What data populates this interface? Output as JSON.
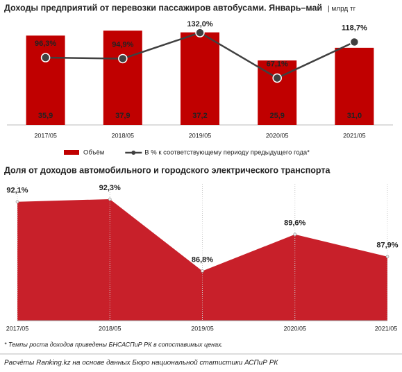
{
  "chart_data": [
    {
      "type": "combo",
      "title": "Доходы предприятий от перевозки пассажиров автобусами. Январь–май",
      "subtitle": "| млрд тг",
      "categories": [
        "2017/05",
        "2018/05",
        "2019/05",
        "2020/05",
        "2021/05"
      ],
      "series": [
        {
          "name": "Объём",
          "type": "bar",
          "color": "#c00000",
          "values": [
            35.9,
            37.9,
            37.2,
            25.9,
            31.0
          ],
          "value_labels": [
            "35,9",
            "37,9",
            "37,2",
            "25,9",
            "31,0"
          ]
        },
        {
          "name": "В % к соответствующему периоду предыдущего года*",
          "type": "line",
          "axis": "y2",
          "color": "#404040",
          "values": [
            96.3,
            94.9,
            132.0,
            67.1,
            118.7
          ],
          "value_labels": [
            "96,3%",
            "94,9%",
            "132,0%",
            "67,1%",
            "118,7%"
          ]
        }
      ],
      "ylim": [
        0,
        41
      ],
      "y2lim": [
        0,
        146
      ]
    },
    {
      "type": "area",
      "title": "Доля от доходов автомобильного и городского электрического транспорта",
      "categories": [
        "2017/05",
        "2018/05",
        "2019/05",
        "2020/05",
        "2021/05"
      ],
      "values": [
        92.1,
        92.3,
        86.8,
        89.6,
        87.9
      ],
      "value_labels": [
        "92,1%",
        "92,3%",
        "86,8%",
        "89,6%",
        "87,9%"
      ],
      "color": "#c8202a",
      "ylim": [
        83,
        93.2
      ],
      "grid": true
    }
  ],
  "footnote": "* Темпы роста доходов приведены БНСАСПиР РК в сопоставимых ценах.",
  "source": "Расчёты Ranking.kz на основе данных Бюро национальной статистики АСПиР РК"
}
